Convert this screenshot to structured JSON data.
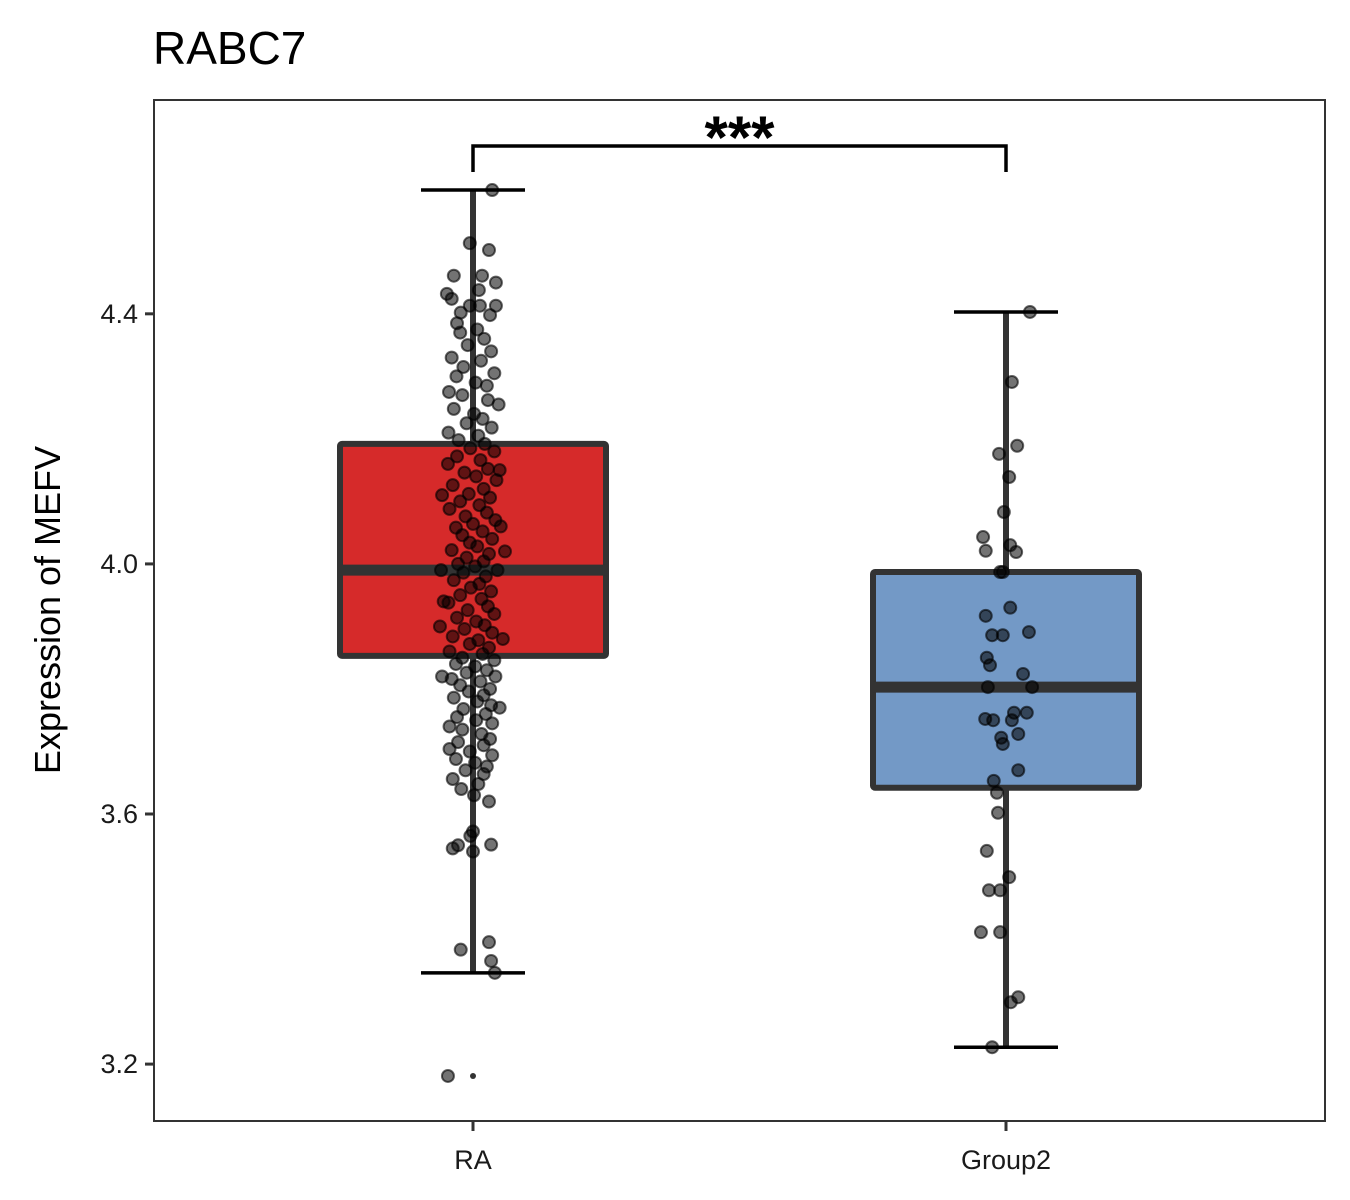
{
  "chart_data": {
    "type": "box",
    "title": "RABC7",
    "xlabel": "",
    "ylabel": "Expression of MEFV",
    "ylim": [
      3.109,
      4.742
    ],
    "yticks": [
      3.2,
      3.6,
      4.0,
      4.4
    ],
    "ytick_labels": [
      "3.2",
      "3.6",
      "4.0",
      "4.4"
    ],
    "categories": [
      "RA",
      "Group2"
    ],
    "grid": false,
    "legend": "none",
    "colors": {
      "RA": "#D62A2A",
      "Group2": "#7399C6",
      "box_outline": "#333333",
      "point": "#000000",
      "panel_border": "#333333"
    },
    "boxes": [
      {
        "name": "RA",
        "whisker_low": 3.346,
        "q1": 3.853,
        "median": 3.99,
        "q3": 4.192,
        "whisker_high": 4.598,
        "outliers": [
          3.181
        ]
      },
      {
        "name": "Group2",
        "whisker_low": 3.227,
        "q1": 3.642,
        "median": 3.803,
        "q3": 3.987,
        "whisker_high": 4.403,
        "outliers": []
      }
    ],
    "significance": {
      "groups": [
        "RA",
        "Group2"
      ],
      "label": "***",
      "y": 4.67
    },
    "points": {
      "RA": [
        [
          4.598,
          0.036
        ],
        [
          4.513,
          -0.006
        ],
        [
          4.502,
          0.03
        ],
        [
          4.461,
          -0.036
        ],
        [
          4.461,
          0.017
        ],
        [
          4.45,
          0.043
        ],
        [
          4.432,
          -0.049
        ],
        [
          4.424,
          -0.04
        ],
        [
          4.438,
          0.011
        ],
        [
          4.413,
          0.013
        ],
        [
          4.413,
          0.043
        ],
        [
          4.413,
          -0.006
        ],
        [
          4.402,
          -0.023
        ],
        [
          4.398,
          0.032
        ],
        [
          4.385,
          -0.03
        ],
        [
          4.375,
          0.008
        ],
        [
          4.37,
          -0.024
        ],
        [
          4.36,
          0.021
        ],
        [
          4.35,
          -0.01
        ],
        [
          4.34,
          0.034
        ],
        [
          4.33,
          -0.04
        ],
        [
          4.325,
          0.015
        ],
        [
          4.315,
          -0.018
        ],
        [
          4.305,
          0.04
        ],
        [
          4.3,
          -0.031
        ],
        [
          4.29,
          0.005
        ],
        [
          4.285,
          0.026
        ],
        [
          4.275,
          -0.045
        ],
        [
          4.27,
          -0.02
        ],
        [
          4.262,
          0.028
        ],
        [
          4.255,
          0.048
        ],
        [
          4.248,
          -0.036
        ],
        [
          4.24,
          0.002
        ],
        [
          4.232,
          0.018
        ],
        [
          4.225,
          -0.012
        ],
        [
          4.218,
          0.035
        ],
        [
          4.21,
          -0.046
        ],
        [
          4.205,
          0.01
        ],
        [
          4.198,
          -0.027
        ],
        [
          4.192,
          0.022
        ],
        [
          4.185,
          -0.005
        ],
        [
          4.18,
          0.04
        ],
        [
          4.172,
          -0.03
        ],
        [
          4.166,
          0.014
        ],
        [
          4.16,
          -0.047
        ],
        [
          4.152,
          0.028
        ],
        [
          4.146,
          -0.016
        ],
        [
          4.14,
          0.006
        ],
        [
          4.134,
          0.044
        ],
        [
          4.126,
          -0.038
        ],
        [
          4.12,
          0.02
        ],
        [
          4.112,
          -0.008
        ],
        [
          4.106,
          0.032
        ],
        [
          4.1,
          -0.024
        ],
        [
          4.094,
          0.012
        ],
        [
          4.088,
          -0.044
        ],
        [
          4.082,
          0.026
        ],
        [
          4.076,
          -0.014
        ],
        [
          4.07,
          0.042
        ],
        [
          4.064,
          0.0
        ],
        [
          4.058,
          -0.032
        ],
        [
          4.052,
          0.018
        ],
        [
          4.046,
          -0.02
        ],
        [
          4.04,
          0.036
        ],
        [
          4.034,
          -0.006
        ],
        [
          4.028,
          0.008
        ],
        [
          4.022,
          -0.04
        ],
        [
          4.016,
          0.03
        ],
        [
          4.01,
          -0.012
        ],
        [
          4.004,
          0.02
        ],
        [
          4.0,
          -0.028
        ],
        [
          3.996,
          0.004
        ],
        [
          3.99,
          0.046
        ],
        [
          3.986,
          -0.018
        ],
        [
          3.98,
          0.024
        ],
        [
          3.974,
          -0.036
        ],
        [
          3.968,
          0.012
        ],
        [
          3.962,
          -0.004
        ],
        [
          3.956,
          0.034
        ],
        [
          3.95,
          -0.024
        ],
        [
          3.944,
          0.016
        ],
        [
          3.938,
          -0.046
        ],
        [
          3.932,
          0.028
        ],
        [
          3.926,
          -0.01
        ],
        [
          3.92,
          0.04
        ],
        [
          3.914,
          -0.03
        ],
        [
          3.908,
          0.006
        ],
        [
          3.902,
          0.022
        ],
        [
          3.896,
          -0.016
        ],
        [
          3.89,
          0.036
        ],
        [
          3.884,
          -0.038
        ],
        [
          3.878,
          0.01
        ],
        [
          3.872,
          -0.006
        ],
        [
          3.866,
          0.03
        ],
        [
          3.86,
          -0.044
        ],
        [
          3.856,
          0.018
        ],
        [
          3.85,
          -0.02
        ],
        [
          3.846,
          0.04
        ],
        [
          3.84,
          -0.032
        ],
        [
          3.836,
          0.004
        ],
        [
          3.83,
          0.026
        ],
        [
          3.826,
          -0.012
        ],
        [
          3.82,
          0.042
        ],
        [
          3.816,
          -0.04
        ],
        [
          3.812,
          0.014
        ],
        [
          3.806,
          -0.024
        ],
        [
          3.8,
          0.032
        ],
        [
          3.796,
          -0.008
        ],
        [
          3.79,
          0.02
        ],
        [
          3.786,
          -0.036
        ],
        [
          3.78,
          0.008
        ],
        [
          3.774,
          0.034
        ],
        [
          3.768,
          -0.018
        ],
        [
          3.76,
          0.024
        ],
        [
          3.755,
          -0.03
        ],
        [
          3.75,
          0.006
        ],
        [
          3.745,
          0.036
        ],
        [
          3.74,
          -0.044
        ],
        [
          3.735,
          -0.02
        ],
        [
          3.728,
          0.016
        ],
        [
          3.72,
          0.032
        ],
        [
          3.715,
          -0.028
        ],
        [
          3.71,
          0.02
        ],
        [
          3.704,
          -0.044
        ],
        [
          3.7,
          -0.006
        ],
        [
          3.694,
          0.036
        ],
        [
          3.688,
          -0.032
        ],
        [
          3.682,
          0.004
        ],
        [
          3.676,
          0.026
        ],
        [
          3.67,
          -0.014
        ],
        [
          3.664,
          0.02
        ],
        [
          3.656,
          -0.038
        ],
        [
          3.648,
          0.01
        ],
        [
          3.64,
          -0.022
        ],
        [
          3.63,
          0.002
        ],
        [
          3.62,
          0.03
        ],
        [
          4.02,
          0.06
        ],
        [
          3.99,
          -0.06
        ],
        [
          4.11,
          -0.058
        ],
        [
          3.88,
          0.056
        ],
        [
          3.94,
          -0.055
        ],
        [
          4.06,
          0.052
        ],
        [
          3.82,
          -0.058
        ],
        [
          4.15,
          0.05
        ],
        [
          3.77,
          0.05
        ],
        [
          3.9,
          -0.062
        ],
        [
          3.572,
          0.0
        ],
        [
          3.565,
          -0.005
        ],
        [
          3.55,
          -0.028
        ],
        [
          3.545,
          -0.038
        ],
        [
          3.54,
          0.0
        ],
        [
          3.551,
          0.034
        ],
        [
          3.383,
          -0.023
        ],
        [
          3.395,
          0.03
        ],
        [
          3.365,
          0.034
        ],
        [
          3.346,
          0.041
        ],
        [
          3.181,
          -0.047
        ]
      ],
      "Group2": [
        [
          4.403,
          0.045
        ],
        [
          4.291,
          0.011
        ],
        [
          4.189,
          0.021
        ],
        [
          4.176,
          -0.013
        ],
        [
          4.139,
          0.006
        ],
        [
          4.083,
          -0.004
        ],
        [
          4.043,
          -0.043
        ],
        [
          4.021,
          -0.038
        ],
        [
          4.03,
          0.008
        ],
        [
          4.019,
          0.019
        ],
        [
          3.987,
          -0.006
        ],
        [
          3.987,
          -0.011
        ],
        [
          3.93,
          0.008
        ],
        [
          3.917,
          -0.038
        ],
        [
          3.886,
          -0.026
        ],
        [
          3.886,
          -0.006
        ],
        [
          3.891,
          0.043
        ],
        [
          3.85,
          -0.036
        ],
        [
          3.838,
          -0.03
        ],
        [
          3.824,
          0.032
        ],
        [
          3.803,
          -0.034
        ],
        [
          3.803,
          0.049
        ],
        [
          3.752,
          -0.039
        ],
        [
          3.75,
          -0.024
        ],
        [
          3.762,
          0.015
        ],
        [
          3.762,
          0.039
        ],
        [
          3.75,
          0.011
        ],
        [
          3.722,
          -0.009
        ],
        [
          3.728,
          0.023
        ],
        [
          3.712,
          -0.006
        ],
        [
          3.67,
          0.023
        ],
        [
          3.653,
          -0.023
        ],
        [
          3.634,
          -0.017
        ],
        [
          3.602,
          -0.015
        ],
        [
          3.541,
          -0.036
        ],
        [
          3.499,
          0.006
        ],
        [
          3.478,
          -0.032
        ],
        [
          3.478,
          -0.011
        ],
        [
          3.411,
          -0.047
        ],
        [
          3.411,
          -0.011
        ],
        [
          3.307,
          0.023
        ],
        [
          3.299,
          0.009
        ],
        [
          3.227,
          -0.026
        ]
      ]
    }
  }
}
